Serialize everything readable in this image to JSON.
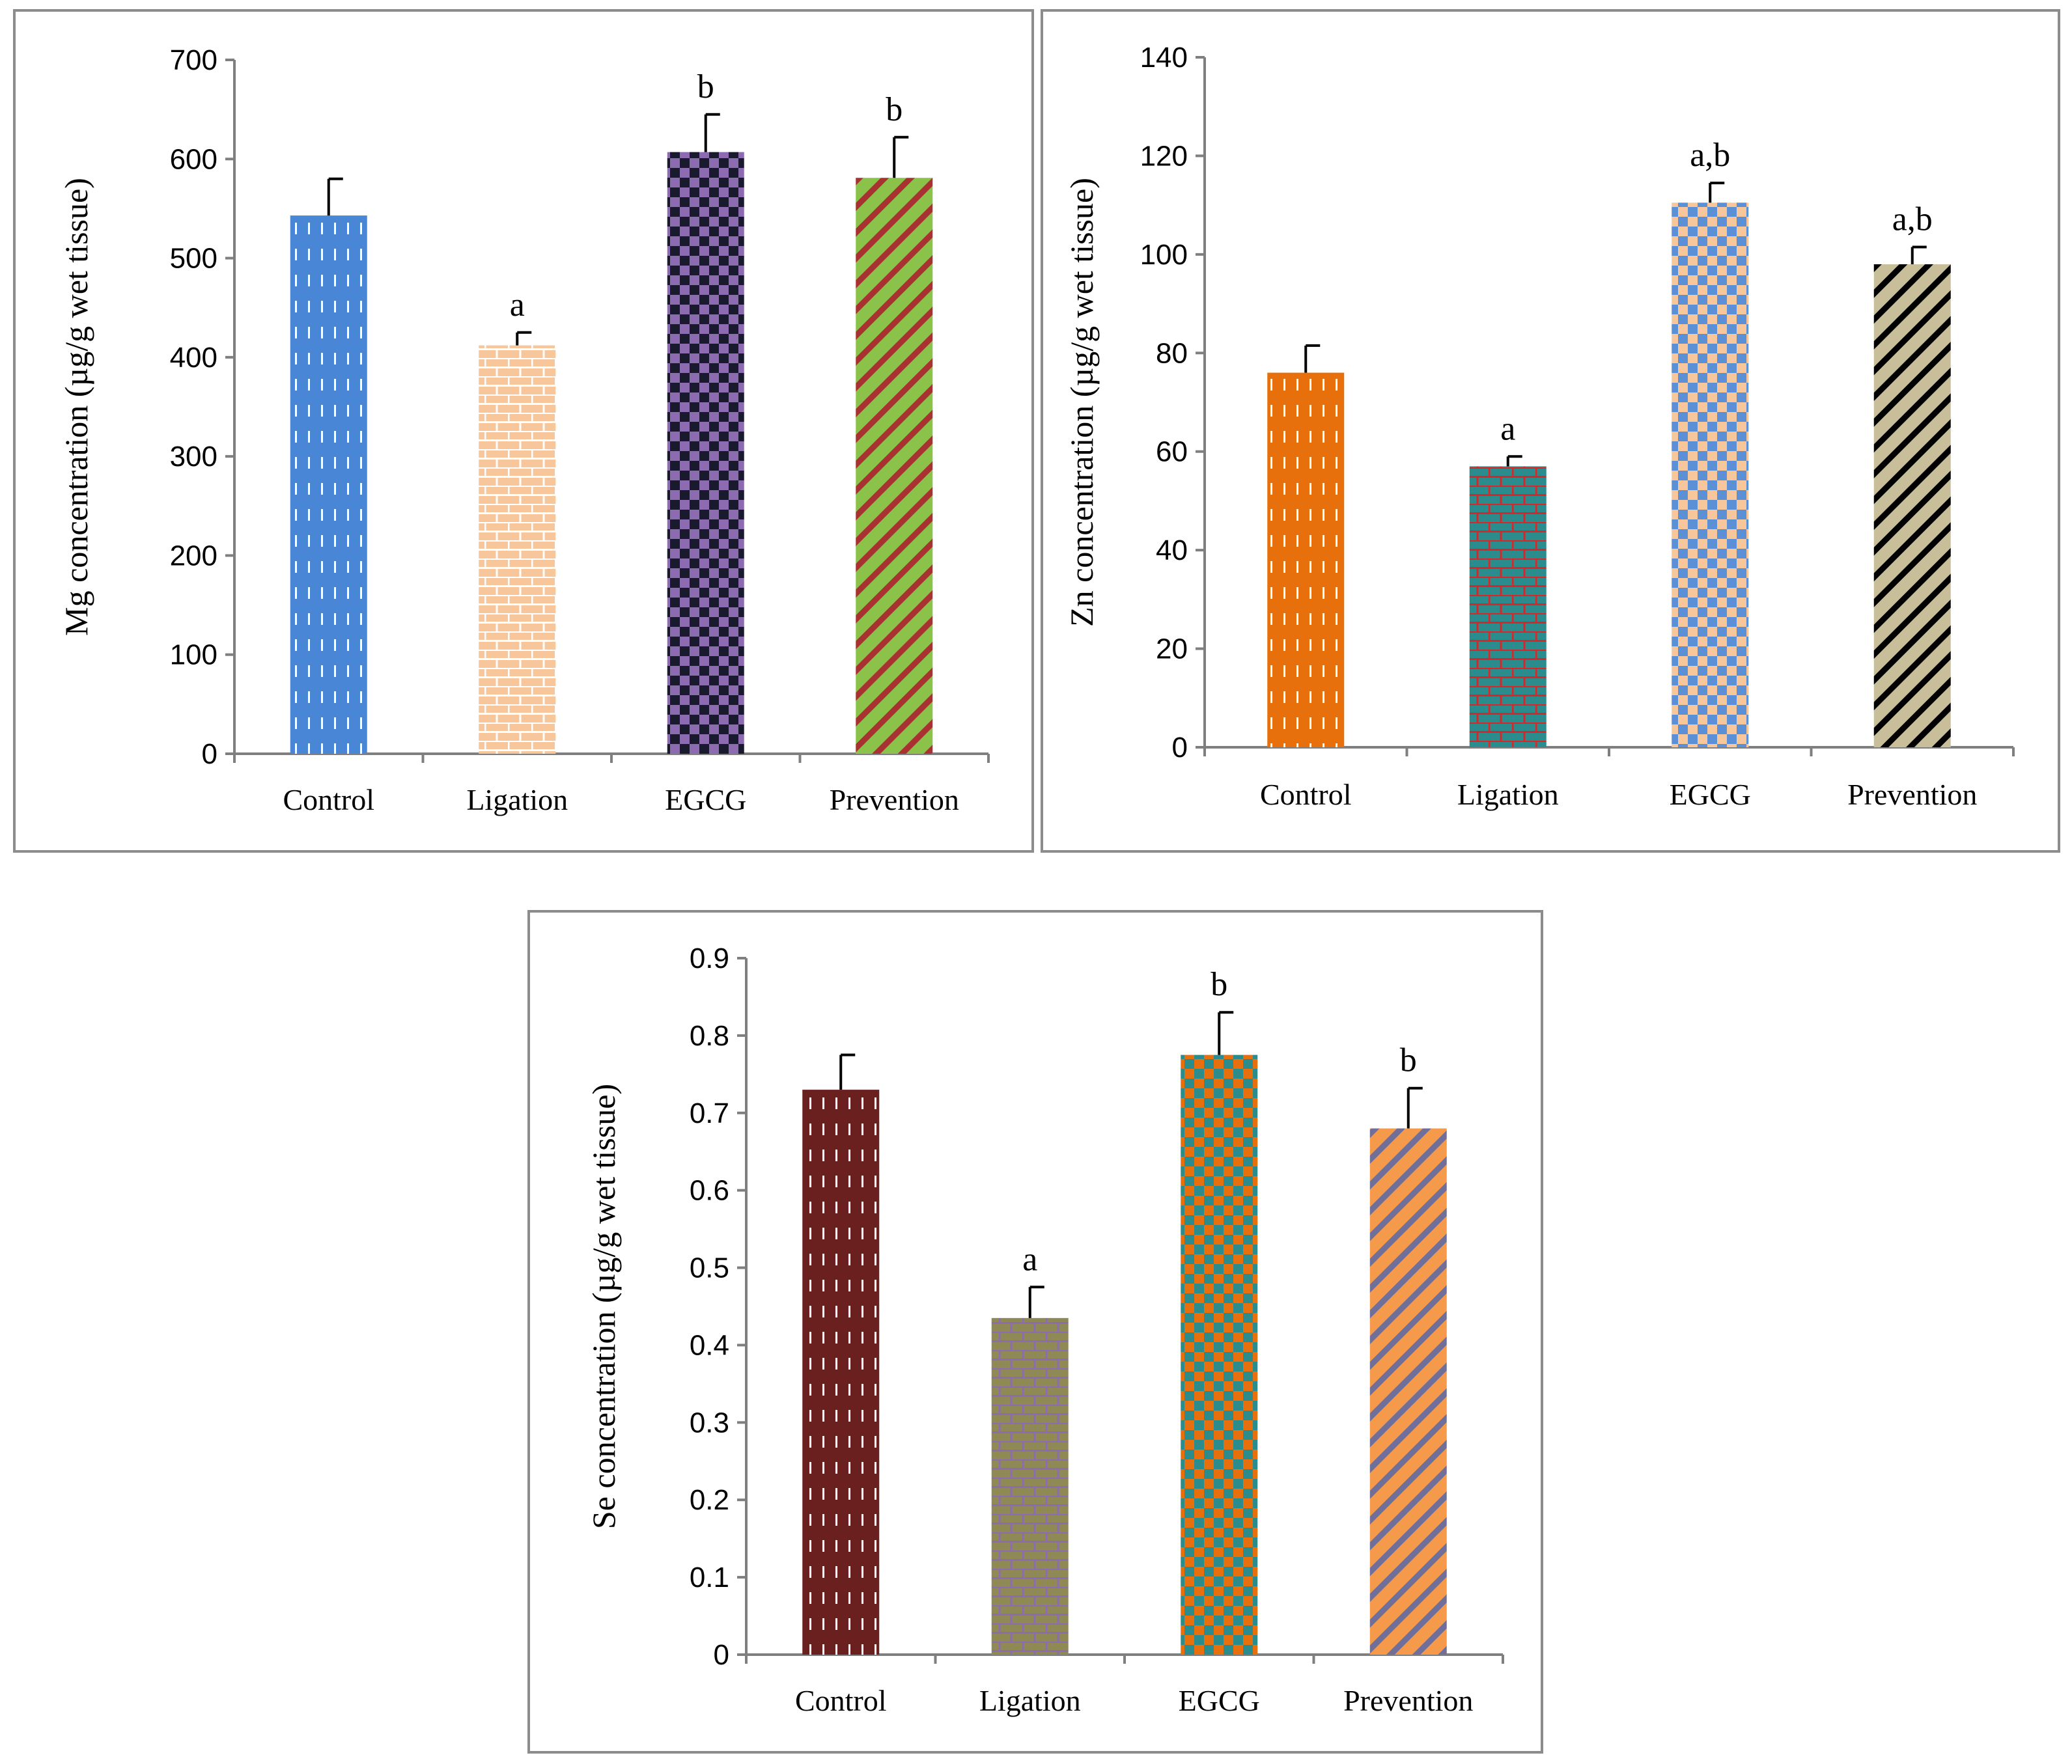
{
  "chart_data": [
    {
      "type": "bar",
      "title": "",
      "xlabel": "",
      "ylabel": "Mg concentration (µg/g wet tissue)",
      "ylim": [
        0,
        700
      ],
      "yticks": [
        "0",
        "100",
        "200",
        "300",
        "400",
        "500",
        "600",
        "700"
      ],
      "categories": [
        "Control",
        "Ligation",
        "EGCG",
        "Prevention"
      ],
      "values": [
        543,
        412,
        607,
        581
      ],
      "errors": [
        37,
        13,
        38,
        41
      ],
      "annotations": [
        "",
        "a",
        "b",
        "b"
      ],
      "patterns": [
        "dash-vertical",
        "brick",
        "checker",
        "diagonal"
      ],
      "colors": [
        [
          "#4a86d6",
          "#ffffff"
        ],
        [
          "#f7c69a",
          "#ffffff"
        ],
        [
          "#1a1a2e",
          "#8c6bb1"
        ],
        [
          "#8bc34a",
          "#a83232"
        ]
      ]
    },
    {
      "type": "bar",
      "title": "",
      "xlabel": "",
      "ylabel": "Zn concentration (µg/g wet tissue)",
      "ylim": [
        0,
        140
      ],
      "yticks": [
        "0",
        "20",
        "40",
        "60",
        "80",
        "100",
        "120",
        "140"
      ],
      "categories": [
        "Control",
        "Ligation",
        "EGCG",
        "Prevention"
      ],
      "values": [
        76,
        57,
        110.5,
        98
      ],
      "errors": [
        5.5,
        2,
        4,
        3.5
      ],
      "annotations": [
        "",
        "a",
        "a,b",
        "a,b"
      ],
      "patterns": [
        "dash-vertical",
        "brick",
        "checker",
        "diagonal"
      ],
      "colors": [
        [
          "#e8700c",
          "#ffffff"
        ],
        [
          "#2a8c8c",
          "#d62828"
        ],
        [
          "#f7c69a",
          "#5b8fd6"
        ],
        [
          "#c8bf9a",
          "#000000"
        ]
      ]
    },
    {
      "type": "bar",
      "title": "",
      "xlabel": "",
      "ylabel": "Se concentration (µg/g wet tissue)",
      "ylim": [
        0,
        0.9
      ],
      "yticks": [
        "0",
        "0.1",
        "0.2",
        "0.3",
        "0.4",
        "0.5",
        "0.6",
        "0.7",
        "0.8",
        "0.9"
      ],
      "categories": [
        "Control",
        "Ligation",
        "EGCG",
        "Prevention"
      ],
      "values": [
        0.73,
        0.435,
        0.775,
        0.68
      ],
      "errors": [
        0.045,
        0.04,
        0.055,
        0.052
      ],
      "annotations": [
        "",
        "a",
        "b",
        "b"
      ],
      "patterns": [
        "dash-vertical",
        "brick",
        "checker",
        "diagonal"
      ],
      "colors": [
        [
          "#6b2020",
          "#ffffff"
        ],
        [
          "#8f8a55",
          "#8c6bb1"
        ],
        [
          "#e8700c",
          "#2a8c8c"
        ],
        [
          "#f59a4a",
          "#6f6f9a"
        ]
      ]
    }
  ]
}
